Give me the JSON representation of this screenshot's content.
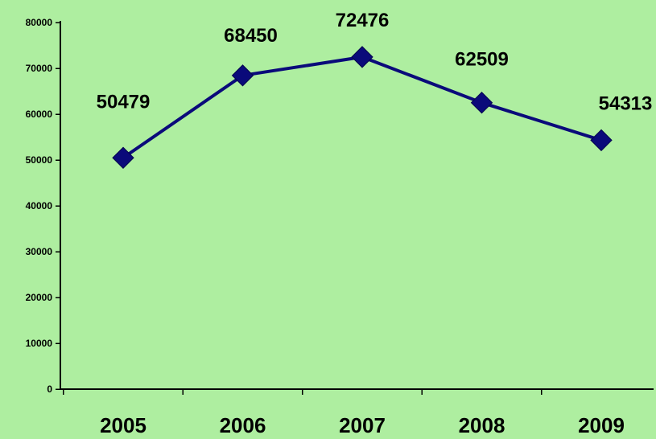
{
  "chart_data": {
    "type": "line",
    "categories": [
      "2005",
      "2006",
      "2007",
      "2008",
      "2009"
    ],
    "series": [
      {
        "values": [
          50479,
          68450,
          72476,
          62509,
          54313
        ],
        "color": "#0a0a7a",
        "marker": "diamond"
      }
    ],
    "data_labels": [
      "50479",
      "68450",
      "72476",
      "62509",
      "54313"
    ],
    "y_ticks": [
      0,
      10000,
      20000,
      30000,
      40000,
      50000,
      60000,
      70000,
      80000
    ],
    "ylim": [
      0,
      80000
    ],
    "grid": false,
    "legend": "none",
    "background_color": "#aeeea0"
  }
}
